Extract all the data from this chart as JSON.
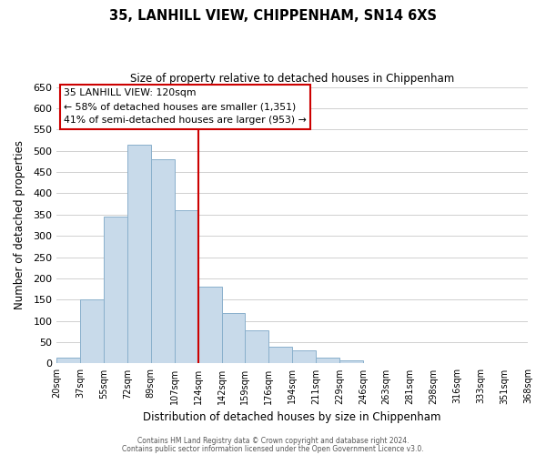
{
  "title": "35, LANHILL VIEW, CHIPPENHAM, SN14 6XS",
  "subtitle": "Size of property relative to detached houses in Chippenham",
  "xlabel": "Distribution of detached houses by size in Chippenham",
  "ylabel": "Number of detached properties",
  "bin_labels": [
    "20sqm",
    "37sqm",
    "55sqm",
    "72sqm",
    "89sqm",
    "107sqm",
    "124sqm",
    "142sqm",
    "159sqm",
    "176sqm",
    "194sqm",
    "211sqm",
    "229sqm",
    "246sqm",
    "263sqm",
    "281sqm",
    "298sqm",
    "316sqm",
    "333sqm",
    "351sqm",
    "368sqm"
  ],
  "bin_values": [
    13,
    150,
    345,
    515,
    480,
    360,
    180,
    118,
    78,
    40,
    30,
    14,
    8,
    0,
    0,
    0,
    0,
    0,
    0,
    0
  ],
  "bar_color": "#c8daea",
  "bar_edge_color": "#8ab0cc",
  "marker_line_index": 6,
  "marker_line_color": "#cc0000",
  "ylim": [
    0,
    650
  ],
  "yticks": [
    0,
    50,
    100,
    150,
    200,
    250,
    300,
    350,
    400,
    450,
    500,
    550,
    600,
    650
  ],
  "annotation_title": "35 LANHILL VIEW: 120sqm",
  "annotation_line1": "← 58% of detached houses are smaller (1,351)",
  "annotation_line2": "41% of semi-detached houses are larger (953) →",
  "footer_line1": "Contains HM Land Registry data © Crown copyright and database right 2024.",
  "footer_line2": "Contains public sector information licensed under the Open Government Licence v3.0.",
  "background_color": "#ffffff",
  "grid_color": "#d0d0d0"
}
